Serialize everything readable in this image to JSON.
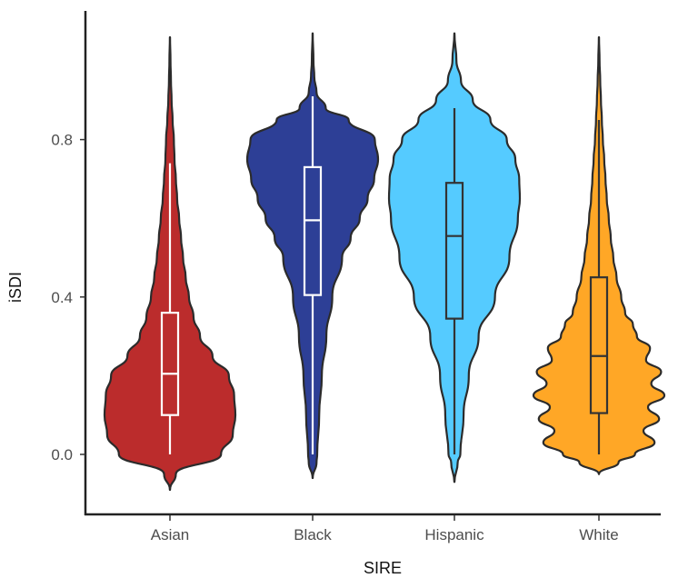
{
  "chart_data": {
    "type": "violin",
    "title": "",
    "xlabel": "SIRE",
    "ylabel": "iSDI",
    "ylim": [
      -0.09,
      1.06
    ],
    "y_ticks": [
      0.0,
      0.4,
      0.8
    ],
    "y_tick_labels": [
      "0.0",
      "0.4",
      "0.8"
    ],
    "grid": false,
    "legend": "none",
    "categories": [
      "Asian",
      "Black",
      "Hispanic",
      "White"
    ],
    "series": [
      {
        "category": "Asian",
        "fill_color": "#bb2c2c",
        "box_color": "#ffffff",
        "box": {
          "min": 0.0,
          "q1": 0.1,
          "median": 0.205,
          "q3": 0.36,
          "max": 0.74
        },
        "range": [
          -0.09,
          1.06
        ],
        "profile": [
          [
            -0.09,
            0.002
          ],
          [
            -0.05,
            0.09
          ],
          [
            0.0,
            0.78
          ],
          [
            0.05,
            0.96
          ],
          [
            0.1,
            1.0
          ],
          [
            0.15,
            0.98
          ],
          [
            0.2,
            0.9
          ],
          [
            0.25,
            0.65
          ],
          [
            0.3,
            0.46
          ],
          [
            0.35,
            0.36
          ],
          [
            0.4,
            0.29
          ],
          [
            0.45,
            0.24
          ],
          [
            0.5,
            0.2
          ],
          [
            0.55,
            0.17
          ],
          [
            0.6,
            0.14
          ],
          [
            0.65,
            0.11
          ],
          [
            0.7,
            0.09
          ],
          [
            0.75,
            0.07
          ],
          [
            0.8,
            0.06
          ],
          [
            0.85,
            0.04
          ],
          [
            0.9,
            0.025
          ],
          [
            0.95,
            0.015
          ],
          [
            1.0,
            0.008
          ],
          [
            1.06,
            0.002
          ]
        ]
      },
      {
        "category": "Black",
        "fill_color": "#2d3f96",
        "box_color": "#ffffff",
        "box": {
          "min": 0.0,
          "q1": 0.405,
          "median": 0.595,
          "q3": 0.73,
          "max": 0.91
        },
        "range": [
          -0.06,
          1.07
        ],
        "profile": [
          [
            -0.06,
            0.002
          ],
          [
            -0.02,
            0.06
          ],
          [
            0.0,
            0.07
          ],
          [
            0.1,
            0.1
          ],
          [
            0.2,
            0.14
          ],
          [
            0.3,
            0.21
          ],
          [
            0.4,
            0.3
          ],
          [
            0.5,
            0.45
          ],
          [
            0.55,
            0.58
          ],
          [
            0.6,
            0.72
          ],
          [
            0.65,
            0.84
          ],
          [
            0.7,
            0.94
          ],
          [
            0.75,
            1.0
          ],
          [
            0.8,
            0.95
          ],
          [
            0.85,
            0.55
          ],
          [
            0.88,
            0.2
          ],
          [
            0.92,
            0.06
          ],
          [
            0.96,
            0.025
          ],
          [
            1.0,
            0.012
          ],
          [
            1.07,
            0.002
          ]
        ]
      },
      {
        "category": "Hispanic",
        "fill_color": "#55cbff",
        "box_color": "#333333",
        "box": {
          "min": 0.0,
          "q1": 0.345,
          "median": 0.555,
          "q3": 0.69,
          "max": 0.88
        },
        "range": [
          -0.07,
          1.07
        ],
        "profile": [
          [
            -0.07,
            0.002
          ],
          [
            -0.02,
            0.05
          ],
          [
            0.0,
            0.09
          ],
          [
            0.1,
            0.14
          ],
          [
            0.2,
            0.22
          ],
          [
            0.3,
            0.37
          ],
          [
            0.4,
            0.62
          ],
          [
            0.5,
            0.84
          ],
          [
            0.6,
            0.97
          ],
          [
            0.65,
            1.0
          ],
          [
            0.7,
            0.99
          ],
          [
            0.75,
            0.93
          ],
          [
            0.8,
            0.8
          ],
          [
            0.85,
            0.55
          ],
          [
            0.9,
            0.28
          ],
          [
            0.95,
            0.1
          ],
          [
            1.0,
            0.03
          ],
          [
            1.07,
            0.002
          ]
        ]
      },
      {
        "category": "White",
        "fill_color": "#ffa726",
        "box_color": "#333333",
        "box": {
          "min": 0.0,
          "q1": 0.105,
          "median": 0.25,
          "q3": 0.45,
          "max": 0.85
        },
        "range": [
          -0.05,
          1.06
        ],
        "profile": [
          [
            -0.05,
            0.002
          ],
          [
            -0.02,
            0.3
          ],
          [
            0.0,
            0.55
          ],
          [
            0.03,
            0.85
          ],
          [
            0.06,
            0.68
          ],
          [
            0.09,
            0.92
          ],
          [
            0.12,
            0.75
          ],
          [
            0.15,
            1.0
          ],
          [
            0.18,
            0.8
          ],
          [
            0.21,
            0.95
          ],
          [
            0.24,
            0.72
          ],
          [
            0.27,
            0.78
          ],
          [
            0.3,
            0.58
          ],
          [
            0.33,
            0.52
          ],
          [
            0.36,
            0.4
          ],
          [
            0.4,
            0.34
          ],
          [
            0.45,
            0.27
          ],
          [
            0.5,
            0.22
          ],
          [
            0.55,
            0.18
          ],
          [
            0.6,
            0.15
          ],
          [
            0.65,
            0.12
          ],
          [
            0.7,
            0.1
          ],
          [
            0.75,
            0.08
          ],
          [
            0.8,
            0.06
          ],
          [
            0.85,
            0.045
          ],
          [
            0.9,
            0.03
          ],
          [
            0.95,
            0.02
          ],
          [
            1.0,
            0.01
          ],
          [
            1.06,
            0.002
          ]
        ]
      }
    ]
  }
}
